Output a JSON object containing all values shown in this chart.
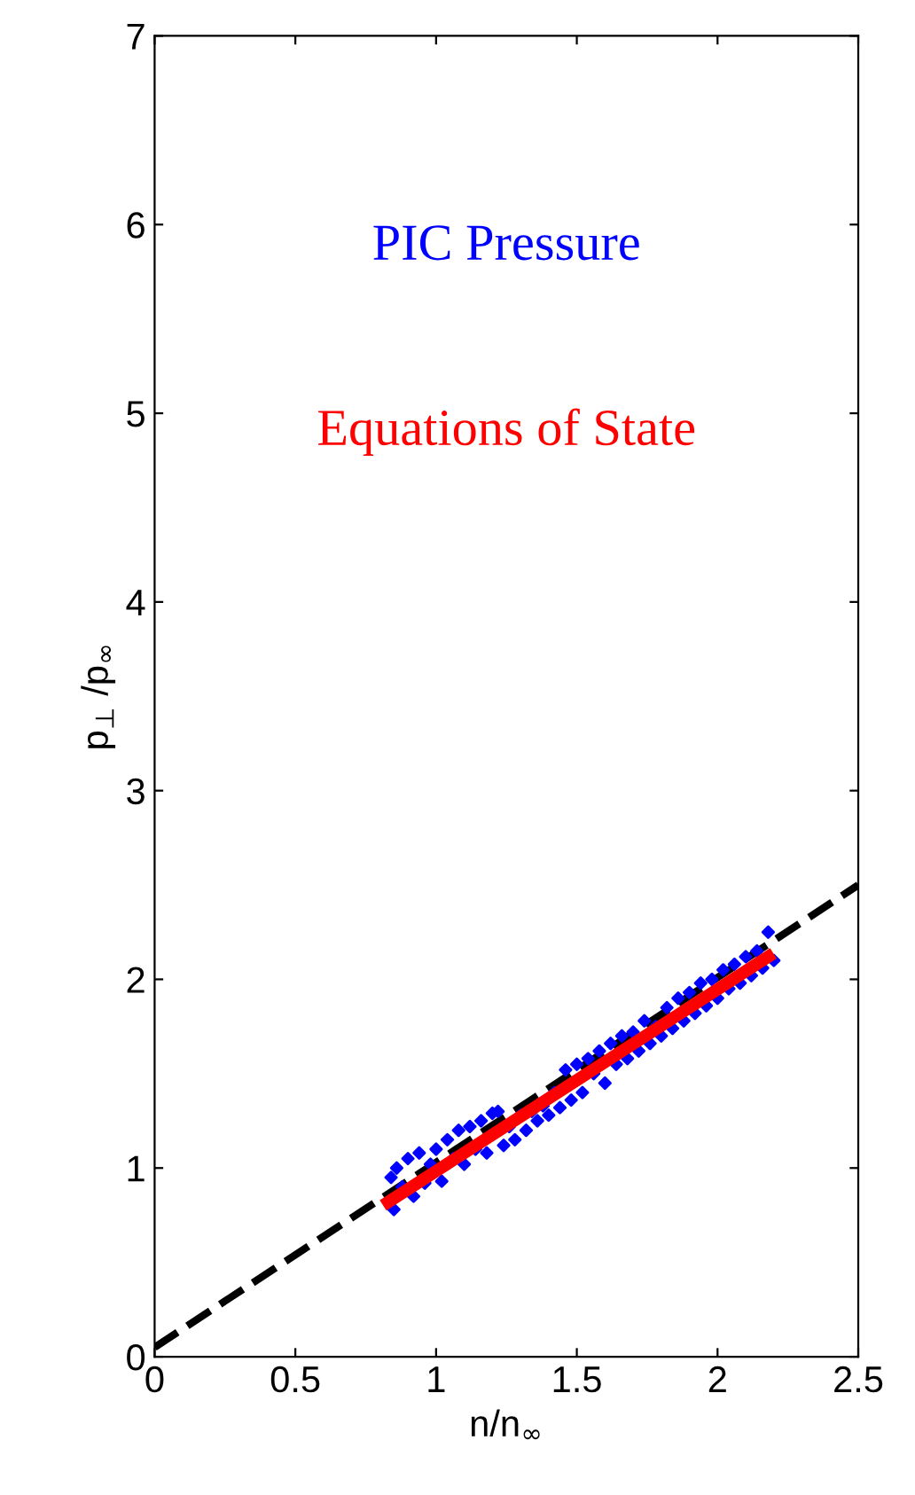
{
  "chart_data": {
    "type": "scatter",
    "xlabel": "n/n$_{∞}$",
    "ylabel": "p$_{⊥}$ /p$_{∞}$",
    "xlim": [
      0,
      2.5
    ],
    "xticks": [
      0,
      0.5,
      1,
      1.5,
      2,
      2.5
    ],
    "ylim": [
      0,
      7
    ],
    "yticks": [
      0,
      1,
      2,
      3,
      4,
      5,
      6,
      7
    ],
    "grid": false,
    "legend": false,
    "series": [
      {
        "name": "PIC Pressure",
        "color": "#0000ff",
        "marker": "diamond",
        "x": [
          0.84,
          0.85,
          0.86,
          0.88,
          0.9,
          0.92,
          0.94,
          0.96,
          0.98,
          1.0,
          1.02,
          1.04,
          1.06,
          1.08,
          1.1,
          1.12,
          1.14,
          1.16,
          1.18,
          1.2,
          1.22,
          1.24,
          1.26,
          1.28,
          1.3,
          1.32,
          1.34,
          1.36,
          1.38,
          1.4,
          1.42,
          1.44,
          1.46,
          1.48,
          1.5,
          1.52,
          1.54,
          1.56,
          1.58,
          1.6,
          1.62,
          1.64,
          1.66,
          1.68,
          1.7,
          1.72,
          1.74,
          1.76,
          1.78,
          1.8,
          1.82,
          1.84,
          1.86,
          1.88,
          1.9,
          1.92,
          1.94,
          1.96,
          1.98,
          2.0,
          2.02,
          2.04,
          2.06,
          2.08,
          2.1,
          2.12,
          2.14,
          2.16,
          2.18,
          2.2
        ],
        "values": [
          0.95,
          0.78,
          1.0,
          0.9,
          1.05,
          0.85,
          1.08,
          0.92,
          1.02,
          1.1,
          0.93,
          1.15,
          1.05,
          1.2,
          1.02,
          1.22,
          1.1,
          1.25,
          1.08,
          1.29,
          1.3,
          1.12,
          1.22,
          1.15,
          1.28,
          1.2,
          1.3,
          1.25,
          1.33,
          1.28,
          1.4,
          1.32,
          1.52,
          1.36,
          1.55,
          1.4,
          1.58,
          1.5,
          1.62,
          1.45,
          1.66,
          1.55,
          1.7,
          1.58,
          1.72,
          1.62,
          1.78,
          1.66,
          1.75,
          1.7,
          1.85,
          1.74,
          1.9,
          1.78,
          1.93,
          1.82,
          1.98,
          1.86,
          2.0,
          1.9,
          2.05,
          1.95,
          2.08,
          1.98,
          2.12,
          2.02,
          2.15,
          2.06,
          2.25,
          2.1
        ]
      },
      {
        "name": "Equations of State",
        "type": "line",
        "color": "#ff0000",
        "line_style": "solid",
        "x": [
          0.83,
          2.18
        ],
        "values": [
          0.82,
          2.12
        ]
      },
      {
        "type": "line",
        "color": "#000000",
        "line_style": "dashed",
        "x": [
          0,
          2.5
        ],
        "values": [
          0.05,
          2.5
        ]
      }
    ]
  }
}
